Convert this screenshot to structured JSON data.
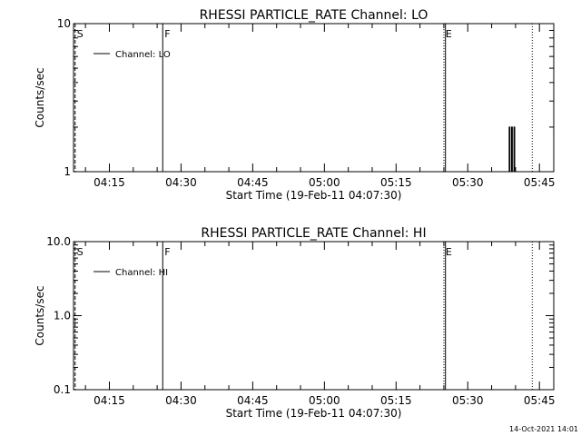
{
  "chart_data": [
    {
      "type": "line",
      "title": "RHESSI PARTICLE_RATE Channel: LO",
      "xlabel": "Start Time (19-Feb-11 04:07:30)",
      "ylabel": "Counts/sec",
      "y_scale": "log",
      "ylim": [
        1,
        10
      ],
      "y_ticks": [
        1,
        10
      ],
      "y_tick_labels": [
        "1",
        "10"
      ],
      "xlim": [
        "04:07:30",
        "05:48:00"
      ],
      "x_ticks": [
        "04:15",
        "04:30",
        "04:45",
        "05:00",
        "05:15",
        "05:30",
        "05:45"
      ],
      "legend": {
        "position": "top-left",
        "entries": [
          "Channel: LO"
        ]
      },
      "series": [
        {
          "name": "Channel: LO",
          "points": [
            [
              "05:38:40",
              1
            ],
            [
              "05:38:40",
              2
            ],
            [
              "05:38:50",
              2
            ],
            [
              "05:38:50",
              1
            ],
            [
              "05:39:10",
              1
            ],
            [
              "05:39:10",
              2
            ],
            [
              "05:39:20",
              2
            ],
            [
              "05:39:20",
              1
            ],
            [
              "05:39:40",
              1
            ],
            [
              "05:39:40",
              2
            ],
            [
              "05:39:50",
              2
            ],
            [
              "05:39:50",
              1
            ]
          ]
        }
      ],
      "markers": [
        {
          "time": "04:07:50",
          "label": "S",
          "style": "dashed"
        },
        {
          "time": "04:26:10",
          "label": "F",
          "style": "solid"
        },
        {
          "time": "05:25:00",
          "label": "E",
          "style": "dotted"
        },
        {
          "time": "05:25:20",
          "label": "",
          "style": "solid"
        },
        {
          "time": "05:43:30",
          "label": "",
          "style": "dotted"
        }
      ]
    },
    {
      "type": "line",
      "title": "RHESSI PARTICLE_RATE Channel: HI",
      "xlabel": "Start Time (19-Feb-11 04:07:30)",
      "ylabel": "Counts/sec",
      "y_scale": "log",
      "ylim": [
        0.1,
        10
      ],
      "y_ticks": [
        0.1,
        1,
        10
      ],
      "y_tick_labels": [
        "0.1",
        "1.0",
        "10.0"
      ],
      "xlim": [
        "04:07:30",
        "05:48:00"
      ],
      "x_ticks": [
        "04:15",
        "04:30",
        "04:45",
        "05:00",
        "05:15",
        "05:30",
        "05:45"
      ],
      "legend": {
        "position": "top-left",
        "entries": [
          "Channel: HI"
        ]
      },
      "series": [
        {
          "name": "Channel: HI",
          "points": []
        }
      ],
      "markers": [
        {
          "time": "04:07:50",
          "label": "S",
          "style": "dashed"
        },
        {
          "time": "04:26:10",
          "label": "F",
          "style": "solid"
        },
        {
          "time": "05:25:00",
          "label": "E",
          "style": "dotted"
        },
        {
          "time": "05:25:20",
          "label": "",
          "style": "solid"
        },
        {
          "time": "05:43:30",
          "label": "",
          "style": "dotted"
        }
      ]
    }
  ],
  "footer": {
    "timestamp": "14-Oct-2021 14:01"
  }
}
